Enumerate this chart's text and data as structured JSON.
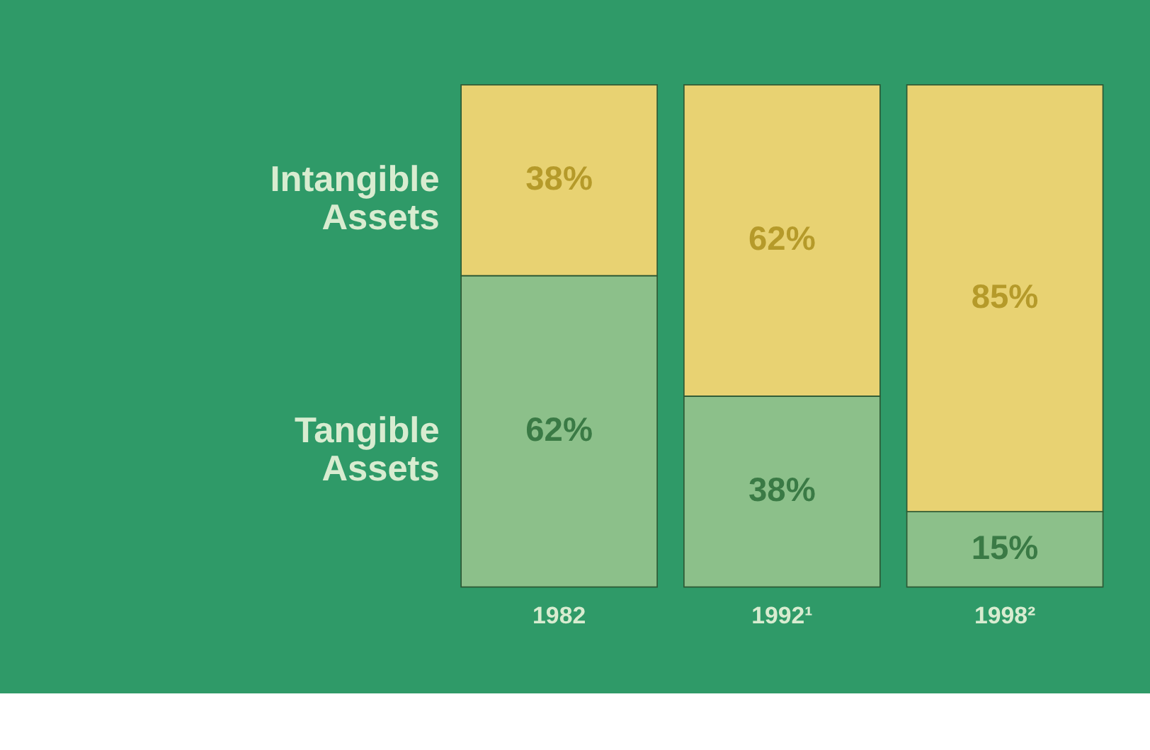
{
  "chart_data": {
    "type": "bar",
    "stacked": true,
    "categories": [
      "1982",
      "1992¹",
      "1998²"
    ],
    "series": [
      {
        "name": "Tangible Assets",
        "color": "#8cc08a",
        "values": [
          62,
          38,
          15
        ],
        "value_labels": [
          "62%",
          "38%",
          "15%"
        ]
      },
      {
        "name": "Intangible Assets",
        "color": "#e8d272",
        "values": [
          38,
          62,
          85
        ],
        "value_labels": [
          "38%",
          "62%",
          "85%"
        ]
      }
    ],
    "ylim": [
      0,
      100
    ],
    "tick_labels": "x",
    "grid": false
  }
}
